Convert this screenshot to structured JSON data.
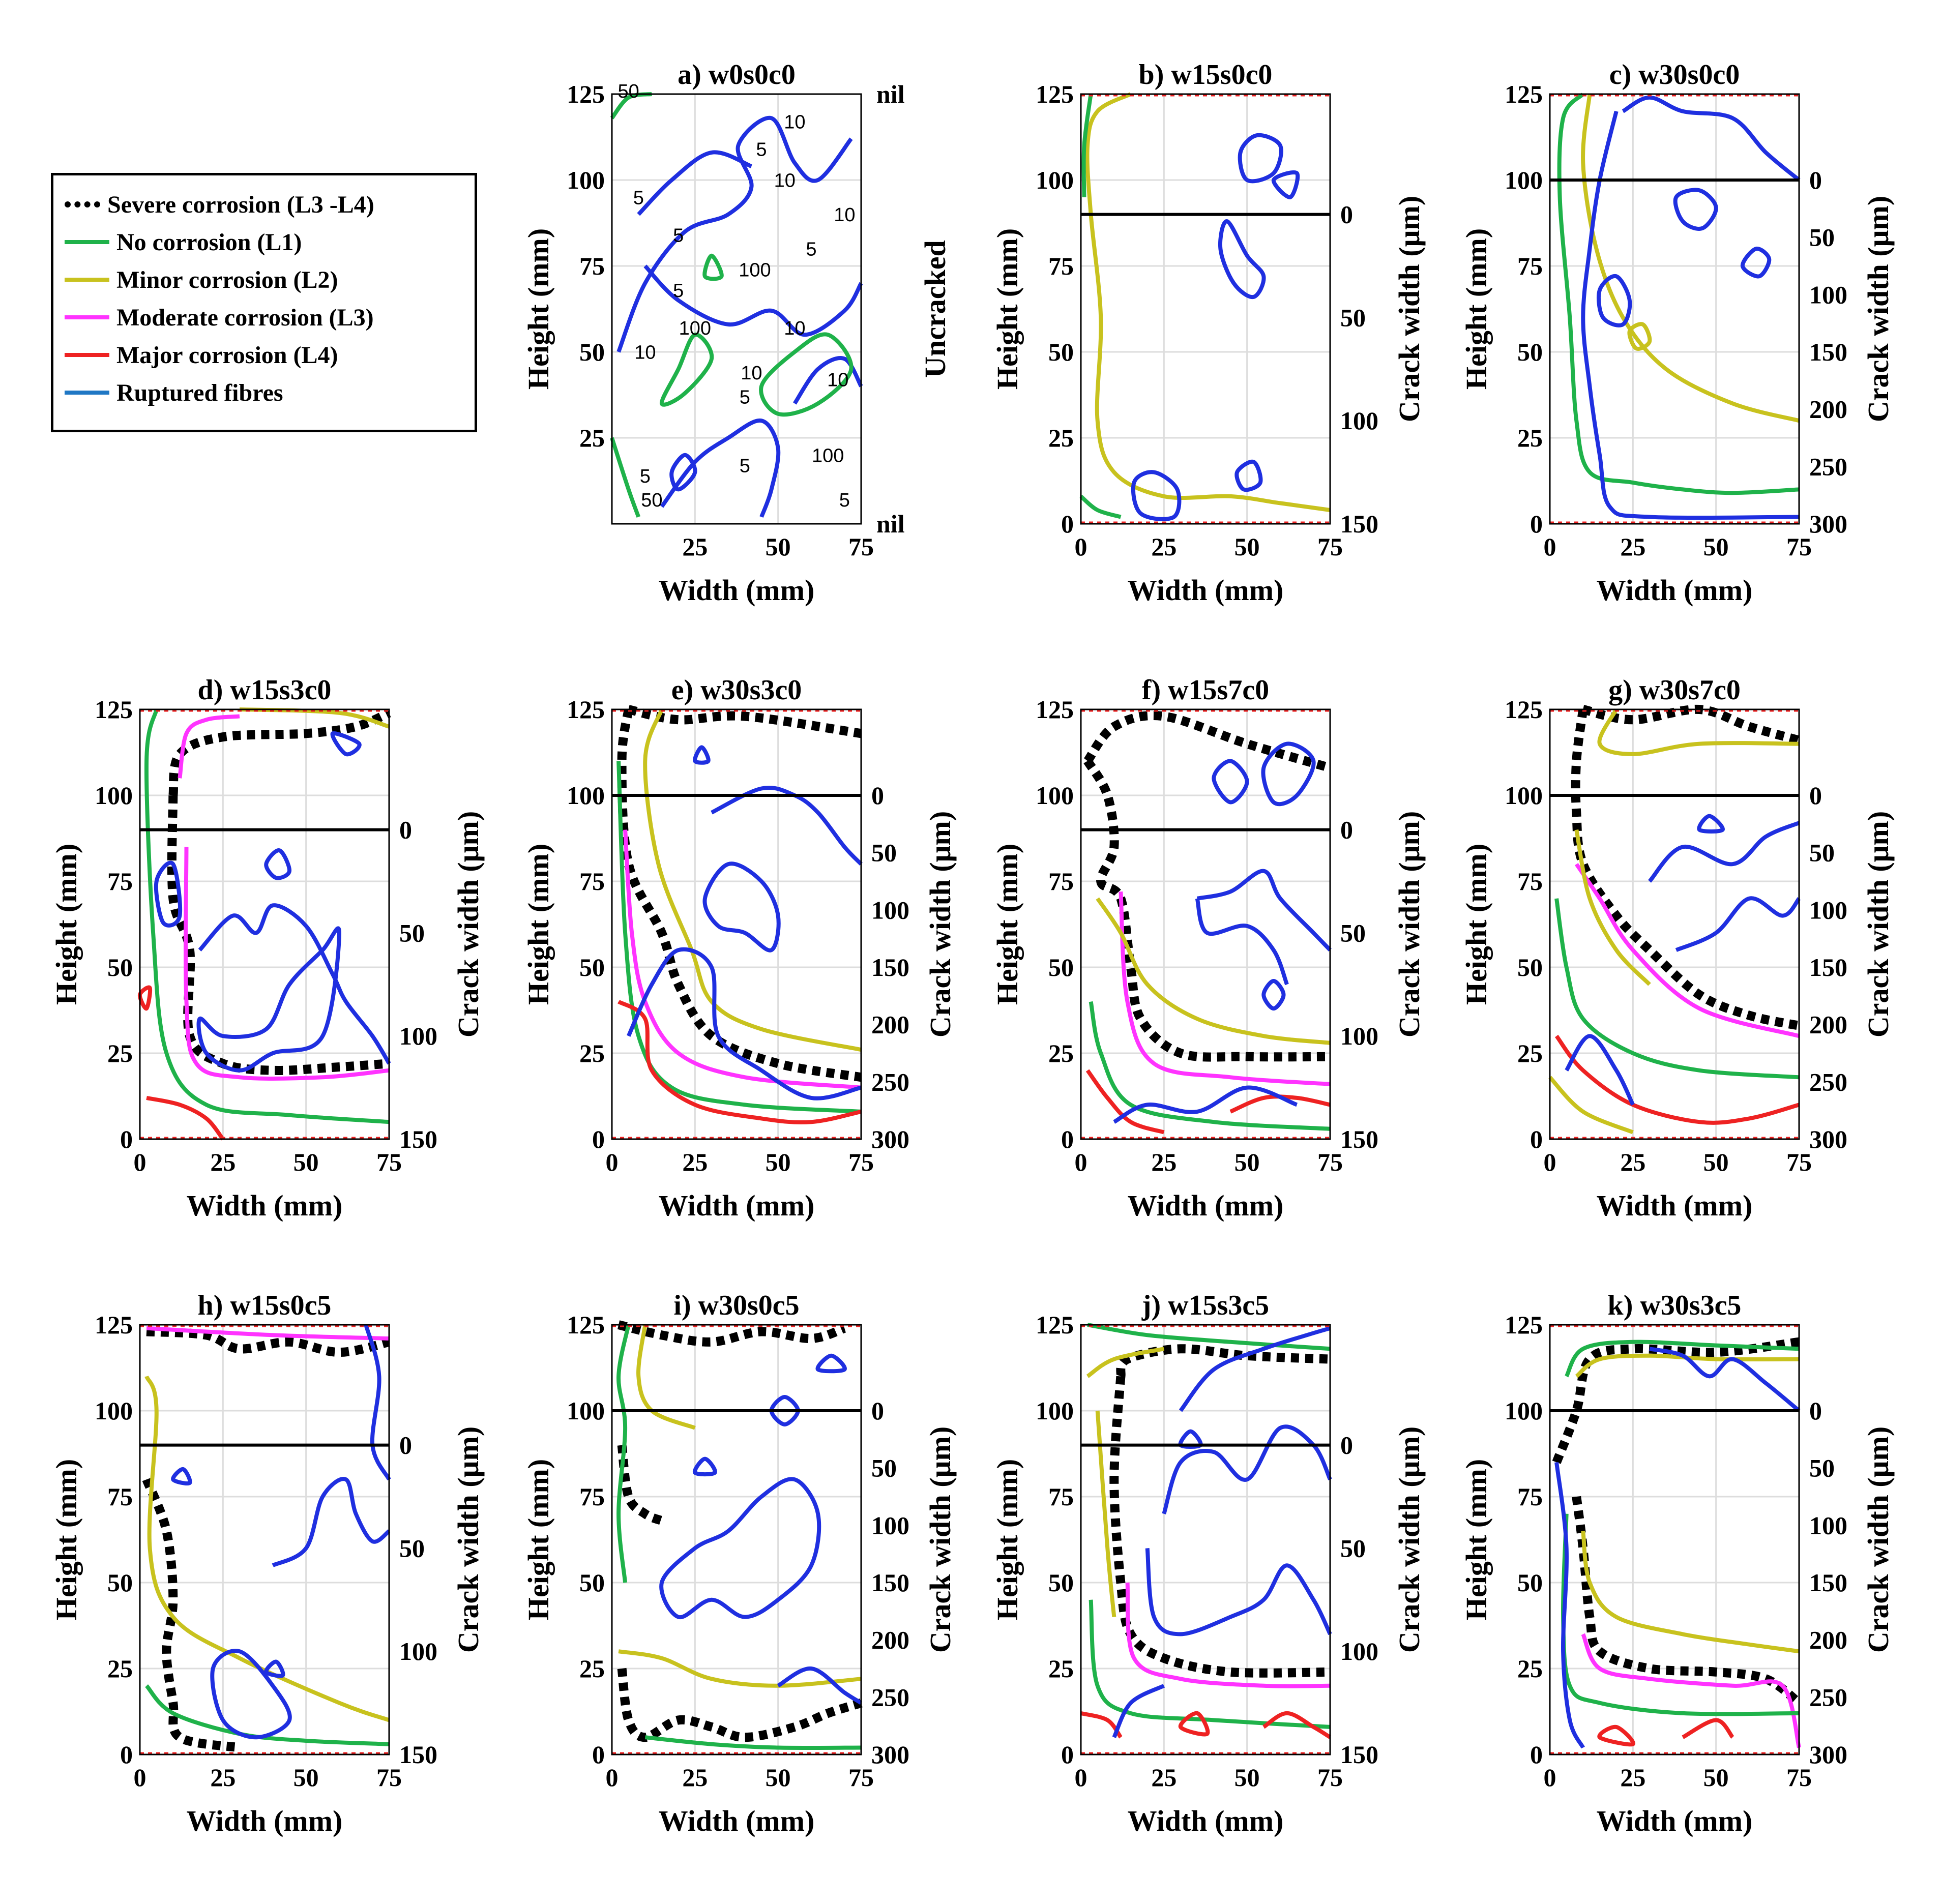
{
  "legend": {
    "items": [
      {
        "label": "Severe corrosion (L3 -L4)",
        "color": "#000000",
        "style": "dotted"
      },
      {
        "label": "No corrosion (L1)",
        "color": "#1fb24a",
        "style": "solid"
      },
      {
        "label": "Minor corrosion (L2)",
        "color": "#c8c21e",
        "style": "solid"
      },
      {
        "label": "Moderate corrosion (L3)",
        "color": "#ff33ff",
        "style": "solid"
      },
      {
        "label": "Major corrosion (L4)",
        "color": "#ee2222",
        "style": "solid"
      },
      {
        "label": "Ruptured fibres",
        "color": "#1f77c4",
        "style": "solid"
      }
    ]
  },
  "chart_data": [
    {
      "id": "a",
      "type": "contour",
      "title": "a) w0s0c0",
      "xlabel": "Width (mm)",
      "ylabel": "Height (mm)",
      "xlim": [
        0,
        75
      ],
      "ylim": [
        0,
        125
      ],
      "xticks": [
        "25",
        "50",
        "75"
      ],
      "yticks": [
        "25",
        "50",
        "75",
        "100",
        "125"
      ],
      "right_label": "Uncracked",
      "right_top": "nil",
      "right_bottom": "nil",
      "crack_line_height": null,
      "contour_labels": [
        "5",
        "10",
        "50",
        "100"
      ],
      "contours": []
    },
    {
      "id": "b",
      "type": "contour",
      "title": "b) w15s0c0",
      "xlabel": "Width (mm)",
      "ylabel": "Height (mm)",
      "xlim": [
        0,
        75
      ],
      "ylim": [
        0,
        125
      ],
      "xticks": [
        "0",
        "25",
        "50",
        "75"
      ],
      "yticks": [
        "0",
        "25",
        "50",
        "75",
        "100",
        "125"
      ],
      "right_label": "Crack width (μm)",
      "right_ticks": [
        "0",
        "50",
        "100",
        "150"
      ],
      "right_max": 150,
      "crack_line_height": 90,
      "contours": []
    },
    {
      "id": "c",
      "type": "contour",
      "title": "c) w30s0c0",
      "xlabel": "Width (mm)",
      "ylabel": "Height (mm)",
      "xlim": [
        0,
        75
      ],
      "ylim": [
        0,
        125
      ],
      "xticks": [
        "0",
        "25",
        "50",
        "75"
      ],
      "yticks": [
        "0",
        "25",
        "50",
        "75",
        "100",
        "125"
      ],
      "right_label": "Crack width (μm)",
      "right_ticks": [
        "0",
        "50",
        "100",
        "150",
        "200",
        "250",
        "300"
      ],
      "right_max": 300,
      "crack_line_height": 100,
      "contours": []
    },
    {
      "id": "d",
      "type": "contour",
      "title": "d) w15s3c0",
      "xlabel": "Width (mm)",
      "ylabel": "Height (mm)",
      "xlim": [
        0,
        75
      ],
      "ylim": [
        0,
        125
      ],
      "xticks": [
        "0",
        "25",
        "50",
        "75"
      ],
      "yticks": [
        "0",
        "25",
        "50",
        "75",
        "100",
        "125"
      ],
      "right_label": "Crack width (μm)",
      "right_ticks": [
        "0",
        "50",
        "100",
        "150"
      ],
      "right_max": 150,
      "crack_line_height": 90,
      "contours": []
    },
    {
      "id": "e",
      "type": "contour",
      "title": "e) w30s3c0",
      "xlabel": "Width (mm)",
      "ylabel": "Height (mm)",
      "xlim": [
        0,
        75
      ],
      "ylim": [
        0,
        125
      ],
      "xticks": [
        "0",
        "25",
        "50",
        "75"
      ],
      "yticks": [
        "0",
        "25",
        "50",
        "75",
        "100",
        "125"
      ],
      "right_label": "Crack width (μm)",
      "right_ticks": [
        "0",
        "50",
        "100",
        "150",
        "200",
        "250",
        "300"
      ],
      "right_max": 300,
      "crack_line_height": 100,
      "contours": []
    },
    {
      "id": "f",
      "type": "contour",
      "title": "f) w15s7c0",
      "xlabel": "Width (mm)",
      "ylabel": "Height (mm)",
      "xlim": [
        0,
        75
      ],
      "ylim": [
        0,
        125
      ],
      "xticks": [
        "0",
        "25",
        "50",
        "75"
      ],
      "yticks": [
        "0",
        "25",
        "50",
        "75",
        "100",
        "125"
      ],
      "right_label": "Crack width (μm)",
      "right_ticks": [
        "0",
        "50",
        "100",
        "150"
      ],
      "right_max": 150,
      "crack_line_height": 90,
      "contours": []
    },
    {
      "id": "g",
      "type": "contour",
      "title": "g) w30s7c0",
      "xlabel": "Width (mm)",
      "ylabel": "Height (mm)",
      "xlim": [
        0,
        75
      ],
      "ylim": [
        0,
        125
      ],
      "xticks": [
        "0",
        "25",
        "50",
        "75"
      ],
      "yticks": [
        "0",
        "25",
        "50",
        "75",
        "100",
        "125"
      ],
      "right_label": "Crack width (μm)",
      "right_ticks": [
        "0",
        "50",
        "100",
        "150",
        "200",
        "250",
        "300"
      ],
      "right_max": 300,
      "crack_line_height": 100,
      "contours": []
    },
    {
      "id": "h",
      "type": "contour",
      "title": "h) w15s0c5",
      "xlabel": "Width (mm)",
      "ylabel": "Height (mm)",
      "xlim": [
        0,
        75
      ],
      "ylim": [
        0,
        125
      ],
      "xticks": [
        "0",
        "25",
        "50",
        "75"
      ],
      "yticks": [
        "0",
        "25",
        "50",
        "75",
        "100",
        "125"
      ],
      "right_label": "Crack width (μm)",
      "right_ticks": [
        "0",
        "50",
        "100",
        "150"
      ],
      "right_max": 150,
      "crack_line_height": 90,
      "contours": []
    },
    {
      "id": "i",
      "type": "contour",
      "title": "i) w30s0c5",
      "xlabel": "Width (mm)",
      "ylabel": "Height (mm)",
      "xlim": [
        0,
        75
      ],
      "ylim": [
        0,
        125
      ],
      "xticks": [
        "0",
        "25",
        "50",
        "75"
      ],
      "yticks": [
        "0",
        "25",
        "50",
        "75",
        "100",
        "125"
      ],
      "right_label": "Crack width (μm)",
      "right_ticks": [
        "0",
        "50",
        "100",
        "150",
        "200",
        "250",
        "300"
      ],
      "right_max": 300,
      "crack_line_height": 100,
      "contours": []
    },
    {
      "id": "j",
      "type": "contour",
      "title": "j) w15s3c5",
      "xlabel": "Width (mm)",
      "ylabel": "Height (mm)",
      "xlim": [
        0,
        75
      ],
      "ylim": [
        0,
        125
      ],
      "xticks": [
        "0",
        "25",
        "50",
        "75"
      ],
      "yticks": [
        "0",
        "25",
        "50",
        "75",
        "100",
        "125"
      ],
      "right_label": "Crack width (μm)",
      "right_ticks": [
        "0",
        "50",
        "100",
        "150"
      ],
      "right_max": 150,
      "crack_line_height": 90,
      "contours": []
    },
    {
      "id": "k",
      "type": "contour",
      "title": "k) w30s3c5",
      "xlabel": "Width (mm)",
      "ylabel": "Height (mm)",
      "xlim": [
        0,
        75
      ],
      "ylim": [
        0,
        125
      ],
      "xticks": [
        "0",
        "25",
        "50",
        "75"
      ],
      "yticks": [
        "0",
        "25",
        "50",
        "75",
        "100",
        "125"
      ],
      "right_label": "Crack width (μm)",
      "right_ticks": [
        "0",
        "50",
        "100",
        "150",
        "200",
        "250",
        "300"
      ],
      "right_max": 300,
      "crack_line_height": 100,
      "contours": []
    }
  ]
}
